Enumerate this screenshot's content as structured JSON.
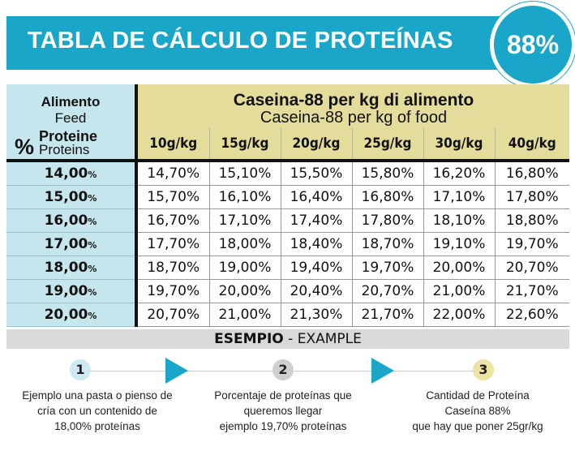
{
  "banner": {
    "title": "TABLA DE CÁLCULO DE PROTEÍNAS",
    "badge": "88%"
  },
  "header": {
    "left_line1": "Alimento",
    "left_line2": "Feed",
    "left_pct_symbol": "%",
    "left_line3": "Proteine",
    "left_line4": "Proteins",
    "right_title": "Caseina-88 per kg di alimento",
    "right_subtitle": "Caseina-88 per kg of food",
    "columns": [
      "10g/kg",
      "15g/kg",
      "20g/kg",
      "25g/kg",
      "30g/kg",
      "40g/kg"
    ]
  },
  "rows": [
    {
      "label": "14,00",
      "unit": "%",
      "values": [
        "14,70%",
        "15,10%",
        "15,50%",
        "15,80%",
        "16,20%",
        "16,80%"
      ]
    },
    {
      "label": "15,00",
      "unit": "%",
      "values": [
        "15,70%",
        "16,10%",
        "16,40%",
        "16,80%",
        "17,10%",
        "17,80%"
      ]
    },
    {
      "label": "16,00",
      "unit": "%",
      "values": [
        "16,70%",
        "17,10%",
        "17,40%",
        "17,80%",
        "18,10%",
        "18,80%"
      ]
    },
    {
      "label": "17,00",
      "unit": "%",
      "values": [
        "17,70%",
        "18,00%",
        "18,40%",
        "18,70%",
        "19,10%",
        "19,70%"
      ]
    },
    {
      "label": "18,00",
      "unit": "%",
      "values": [
        "18,70%",
        "19,00%",
        "19,40%",
        "19,70%",
        "20,00%",
        "20,70%"
      ]
    },
    {
      "label": "19,00",
      "unit": "%",
      "values": [
        "19,70%",
        "20,00%",
        "20,40%",
        "20,70%",
        "21,00%",
        "21,70%"
      ]
    },
    {
      "label": "20,00",
      "unit": "%",
      "values": [
        "20,70%",
        "21,00%",
        "21,30%",
        "21,70%",
        "22,00%",
        "22,60%"
      ]
    }
  ],
  "example": {
    "bold": "ESEMPIO",
    "rest": " - EXAMPLE"
  },
  "steps": [
    {
      "num": "1",
      "color": "#cde9f1",
      "lines": [
        "Ejemplo una pasta o pienso de",
        "cría con un contenido de",
        "18,00% proteínas"
      ]
    },
    {
      "num": "2",
      "color": "#cfcfcf",
      "lines": [
        "Porcentaje de proteínas que",
        "queremos llegar",
        "ejemplo 19,70% proteínas"
      ]
    },
    {
      "num": "3",
      "color": "#ece3a4",
      "lines": [
        "Cantidad de Proteína",
        "Caseína 88%",
        "que hay que poner 25gr/kg"
      ]
    }
  ],
  "colors": {
    "accent": "#1aa6c9",
    "header_yellow": "#e4dc9a",
    "header_blue": "#c6e6ee",
    "example_gray": "#d9d9d9"
  }
}
